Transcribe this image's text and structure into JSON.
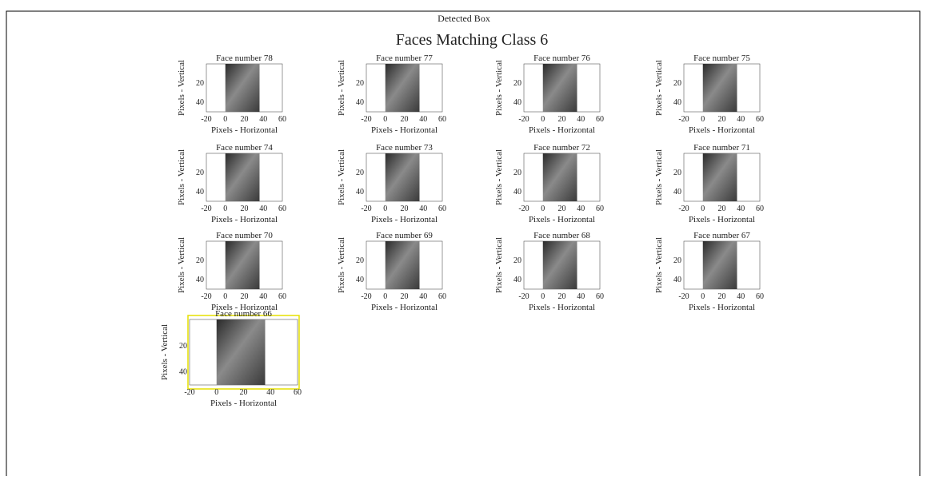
{
  "window": {
    "title": "Detected Box"
  },
  "figure": {
    "title": "Faces Matching Class 6",
    "xlabel": "Pixels - Horizontal",
    "ylabel": "Pixels - Vertical",
    "xticks": [
      -20,
      0,
      20,
      40,
      60
    ],
    "yticks": [
      20,
      40
    ],
    "panels": [
      {
        "title": "Face number 78"
      },
      {
        "title": "Face number 77"
      },
      {
        "title": "Face number 76"
      },
      {
        "title": "Face number 75"
      },
      {
        "title": "Face number 74"
      },
      {
        "title": "Face number 73"
      },
      {
        "title": "Face number 72"
      },
      {
        "title": "Face number 71"
      },
      {
        "title": "Face number 70"
      },
      {
        "title": "Face number 69"
      },
      {
        "title": "Face number 68"
      },
      {
        "title": "Face number 67"
      },
      {
        "title": "Face number 66"
      }
    ]
  }
}
